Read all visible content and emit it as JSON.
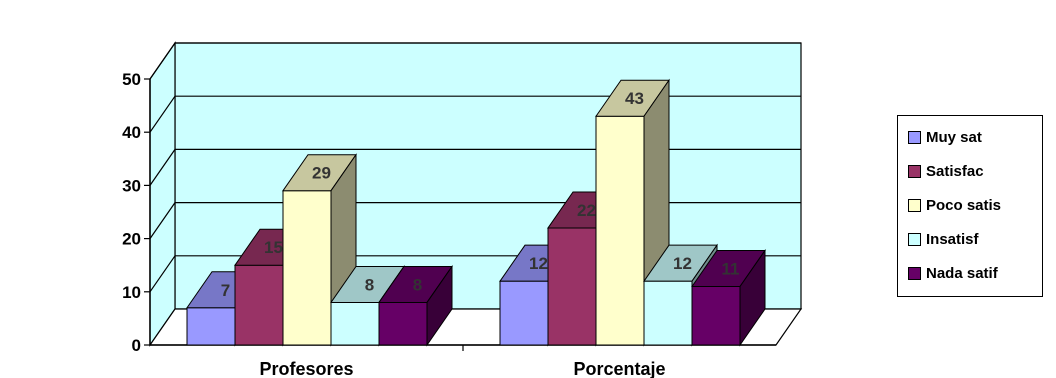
{
  "chart_data": {
    "type": "bar",
    "categories": [
      "Profesores",
      "Porcentaje"
    ],
    "series": [
      {
        "name": "Muy sat",
        "values": [
          7,
          12
        ],
        "color": "#9999ff"
      },
      {
        "name": "Satisfac",
        "values": [
          15,
          22
        ],
        "color": "#993366"
      },
      {
        "name": "Poco satis",
        "values": [
          29,
          43
        ],
        "color": "#ffffcc"
      },
      {
        "name": "Insatisf",
        "values": [
          8,
          12
        ],
        "color": "#ccffff"
      },
      {
        "name": "Nada satif",
        "values": [
          8,
          11
        ],
        "color": "#660066"
      }
    ],
    "ylim": [
      0,
      50
    ],
    "yticks": [
      "0",
      "10",
      "20",
      "30",
      "40",
      "50"
    ],
    "grid": true,
    "legend_position": "right",
    "wall_color": "#ccffff"
  }
}
